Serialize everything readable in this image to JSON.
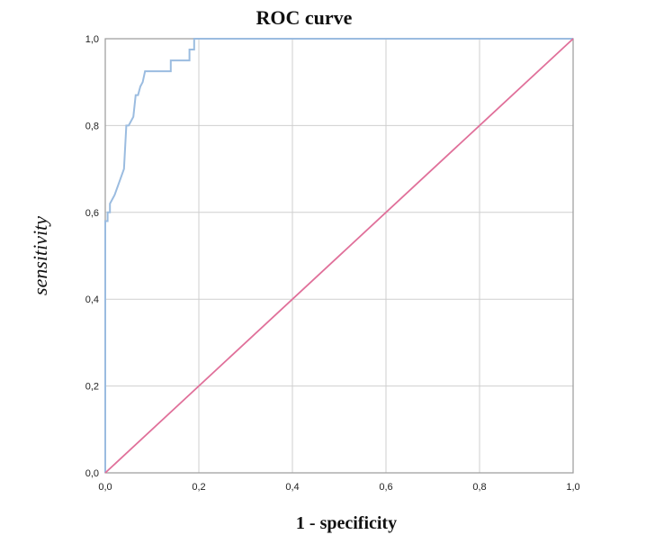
{
  "chart_data": {
    "type": "line",
    "title": "ROC curve",
    "xlabel": "1 - specificity",
    "ylabel": "sensitivity",
    "xlim": [
      0,
      1
    ],
    "ylim": [
      0,
      1
    ],
    "x_ticks": [
      "0,0",
      "0,2",
      "0,4",
      "0,6",
      "0,8",
      "1,0"
    ],
    "y_ticks": [
      "0,0",
      "0,2",
      "0,4",
      "0,6",
      "0,8",
      "1,0"
    ],
    "x_tick_values": [
      0,
      0.2,
      0.4,
      0.6,
      0.8,
      1.0
    ],
    "y_tick_values": [
      0,
      0.2,
      0.4,
      0.6,
      0.8,
      1.0
    ],
    "grid": true,
    "legend": "none",
    "colors": {
      "roc": "#9bbce0",
      "reference": "#e0709a"
    },
    "series": [
      {
        "x": [
          0,
          0,
          0.005,
          0.005,
          0.01,
          0.01,
          0.02,
          0.03,
          0.04,
          0.045,
          0.05,
          0.06,
          0.065,
          0.07,
          0.075,
          0.08,
          0.085,
          0.09,
          0.14,
          0.14,
          0.18,
          0.18,
          0.19,
          0.19,
          1.0
        ],
        "y": [
          0,
          0.58,
          0.58,
          0.6,
          0.6,
          0.62,
          0.64,
          0.67,
          0.7,
          0.8,
          0.8,
          0.82,
          0.87,
          0.87,
          0.89,
          0.9,
          0.925,
          0.925,
          0.925,
          0.95,
          0.95,
          0.975,
          0.975,
          1.0,
          1.0
        ]
      },
      {
        "x": [
          0,
          1
        ],
        "y": [
          0,
          1
        ]
      }
    ]
  }
}
